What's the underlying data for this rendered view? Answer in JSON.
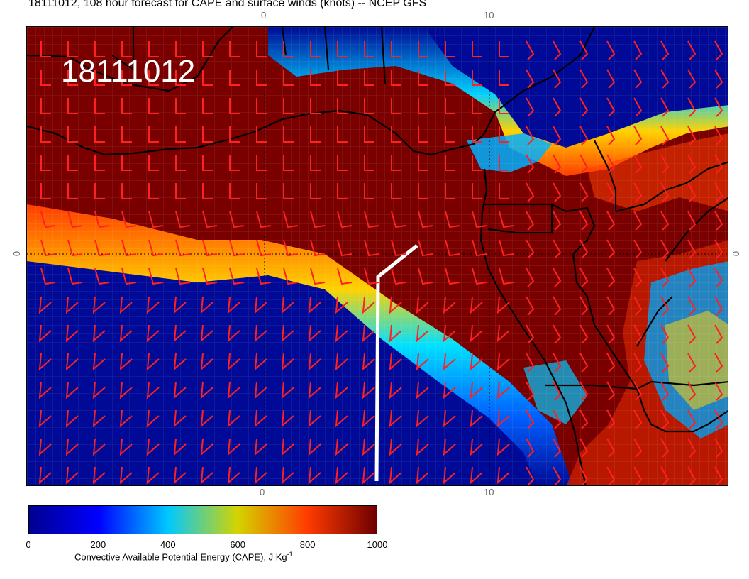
{
  "title": "18111012, 108 hour forecast for CAPE and surface winds (knots) -- NCEP GFS",
  "stamp": "18111012",
  "axis_labels": {
    "top_left": "0",
    "top_right": "10",
    "bottom_left": "0",
    "bottom_right": "10",
    "left": "0",
    "right": "0"
  },
  "colorbar": {
    "ticks": [
      "0",
      "200",
      "400",
      "600",
      "800",
      "1000"
    ],
    "caption_main": "Convective Available Potential Energy (CAPE), J Kg",
    "caption_sup": "-1",
    "colors": [
      "#00008f",
      "#0000ff",
      "#00c8ff",
      "#d4d400",
      "#ff3c00",
      "#6f0000"
    ]
  },
  "colors": {
    "high_cape": "#7a0000",
    "low_cape": "#000a96",
    "wind_barb": "#ff2020",
    "coastline": "#000000",
    "trajectory": "#ffffff"
  }
}
